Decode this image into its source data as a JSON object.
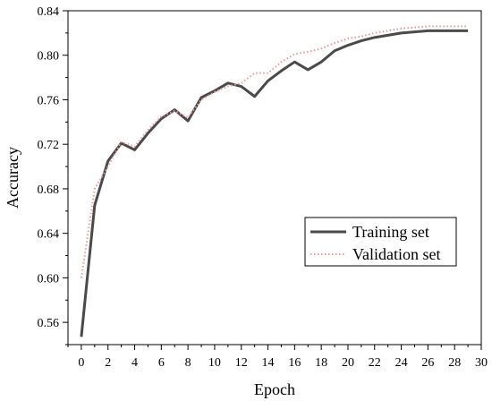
{
  "chart_data": {
    "type": "line",
    "xlabel": "Epoch",
    "ylabel": "Accuracy",
    "xlim": [
      -1,
      30
    ],
    "ylim": [
      0.54,
      0.84
    ],
    "xticks": [
      0,
      2,
      4,
      6,
      8,
      10,
      12,
      14,
      16,
      18,
      20,
      22,
      24,
      26,
      28,
      30
    ],
    "yticks": [
      0.56,
      0.6,
      0.64,
      0.68,
      0.72,
      0.76,
      0.8,
      0.84
    ],
    "legend_position": "center-right",
    "series": [
      {
        "name": "Training set",
        "color": "#4a4a4a",
        "style": "solid",
        "x": [
          0,
          1,
          2,
          3,
          4,
          5,
          6,
          7,
          8,
          9,
          10,
          11,
          12,
          13,
          14,
          15,
          16,
          17,
          18,
          19,
          20,
          21,
          22,
          23,
          24,
          25,
          26,
          27,
          28,
          29
        ],
        "values": [
          0.547,
          0.665,
          0.705,
          0.721,
          0.715,
          0.73,
          0.743,
          0.751,
          0.741,
          0.762,
          0.768,
          0.775,
          0.772,
          0.763,
          0.777,
          0.786,
          0.794,
          0.787,
          0.794,
          0.804,
          0.809,
          0.813,
          0.816,
          0.818,
          0.82,
          0.821,
          0.822,
          0.822,
          0.822,
          0.822
        ]
      },
      {
        "name": "Validation set",
        "color": "#e89a9a",
        "style": "dotted",
        "x": [
          0,
          1,
          2,
          3,
          4,
          5,
          6,
          7,
          8,
          9,
          10,
          11,
          12,
          13,
          14,
          15,
          16,
          17,
          18,
          19,
          20,
          21,
          22,
          23,
          24,
          25,
          26,
          27,
          28,
          29
        ],
        "values": [
          0.6,
          0.68,
          0.7,
          0.722,
          0.718,
          0.733,
          0.745,
          0.75,
          0.744,
          0.76,
          0.767,
          0.772,
          0.775,
          0.784,
          0.784,
          0.794,
          0.801,
          0.803,
          0.806,
          0.811,
          0.815,
          0.817,
          0.82,
          0.822,
          0.824,
          0.825,
          0.826,
          0.826,
          0.826,
          0.826
        ]
      }
    ]
  }
}
